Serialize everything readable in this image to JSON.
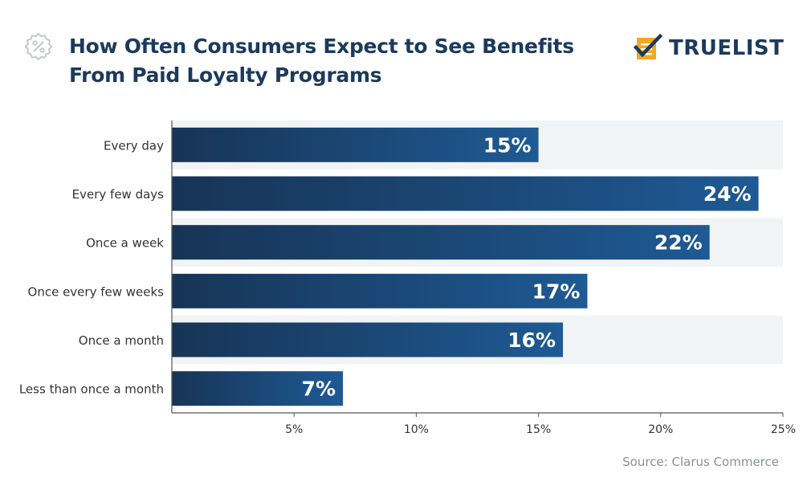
{
  "header": {
    "title_line1": "How Often Consumers Expect to See Benefits",
    "title_line2": "From Paid Loyalty Programs",
    "title_icon": "percent-badge-icon",
    "brand_name": "TRUELIST",
    "brand_icon": "checklist-icon"
  },
  "footer": {
    "source": "Source: Clarus Commerce"
  },
  "colors": {
    "title": "#1b3a5c",
    "bar_dark": "#173456",
    "bar_light": "#1e5a94",
    "track": "#f2f3f5",
    "axis": "#555555",
    "tick_text": "#333333",
    "brand_orange": "#f5a623",
    "icon_gray": "#c5c8cc"
  },
  "chart_data": {
    "type": "bar",
    "orientation": "horizontal",
    "categories": [
      "Every day",
      "Every few days",
      "Once a week",
      "Once every few weeks",
      "Once a month",
      "Less than once a month"
    ],
    "values": [
      15,
      24,
      22,
      17,
      16,
      7
    ],
    "value_labels": [
      "15%",
      "24%",
      "22%",
      "17%",
      "16%",
      "7%"
    ],
    "xlim": [
      0,
      25
    ],
    "xticks": [
      5,
      10,
      15,
      20,
      25
    ],
    "xtick_labels": [
      "5%",
      "10%",
      "15%",
      "20%",
      "25%"
    ],
    "title": "How Often Consumers Expect to See Benefits From Paid Loyalty Programs",
    "xlabel": "",
    "ylabel": "",
    "grid": false,
    "legend": "none"
  }
}
